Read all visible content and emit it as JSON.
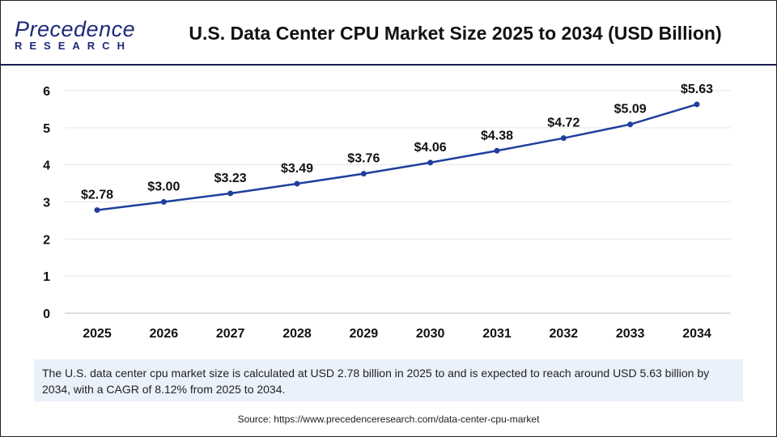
{
  "header": {
    "logo_line1": "Precedence",
    "logo_line2": "RESEARCH",
    "title": "U.S. Data Center CPU Market Size 2025 to 2034 (USD Billion)"
  },
  "chart_data": {
    "type": "line",
    "title": "U.S. Data Center CPU Market Size 2025 to 2034 (USD Billion)",
    "categories": [
      "2025",
      "2026",
      "2027",
      "2028",
      "2029",
      "2030",
      "2031",
      "2032",
      "2033",
      "2034"
    ],
    "series": [
      {
        "values": [
          2.78,
          3.0,
          3.23,
          3.49,
          3.76,
          4.06,
          4.38,
          4.72,
          5.09,
          5.63
        ],
        "labels": [
          "$2.78",
          "$3.00",
          "$3.23",
          "$3.49",
          "$3.76",
          "$4.06",
          "$4.38",
          "$4.72",
          "$5.09",
          "$5.63"
        ],
        "color": "#1f3f9e"
      }
    ],
    "ylim": [
      0,
      6
    ],
    "yticks": [
      "0",
      "1",
      "2",
      "3",
      "4",
      "5",
      "6"
    ],
    "grid": true,
    "xlabel": "",
    "ylabel": ""
  },
  "note": "The U.S. data center cpu market size is calculated at USD 2.78 billion in 2025 to and is expected to reach around USD 5.63 billion by 2034, with a CAGR of 8.12% from 2025 to 2034.",
  "source": "Source: https://www.precedenceresearch.com/data-center-cpu-market"
}
